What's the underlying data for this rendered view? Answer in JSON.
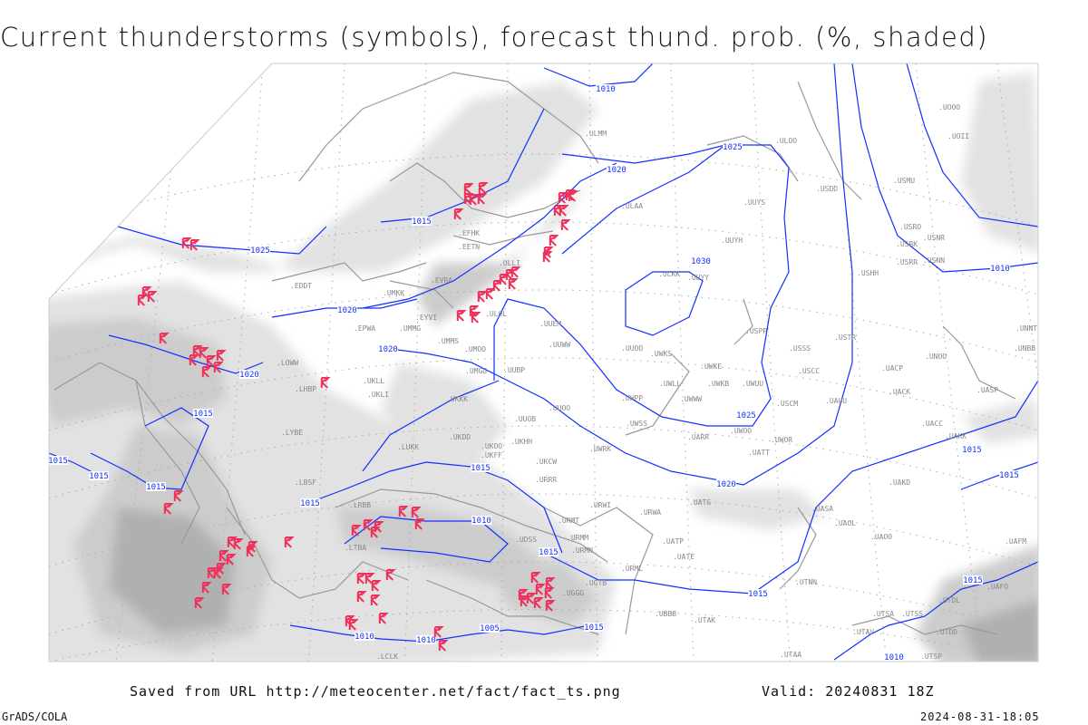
{
  "title": "Current thunderstorms (symbols), forecast thund. prob. (%, shaded)",
  "footer": {
    "source": "Saved from URL http://meteocenter.net/fact/fact_ts.png",
    "valid": "Valid: 20240831 18Z",
    "software": "GrADS/COLA",
    "timestamp": "2024-08-31-18:05"
  },
  "colors": {
    "isobar": "#1030ff",
    "thunderstorm_symbol": "#f0305a",
    "coastline": "#999999",
    "shading_light": "#e2e2e2",
    "shading_mid": "#cccccc",
    "shading_dark": "#b0b0b0"
  },
  "legend_symbol": "thunderstorm-symbol",
  "isobar_labels": [
    "1010",
    "1025",
    "1020",
    "1015",
    "1025",
    "1030",
    "1020",
    "1020",
    "1020",
    "1025",
    "1015",
    "1015",
    "1015",
    "1015",
    "1015",
    "1015",
    "1015",
    "1020",
    "1010",
    "1015",
    "1015",
    "1015",
    "1015",
    "1005",
    "1010",
    "1010",
    "1010",
    "1010",
    "1015"
  ],
  "stations": [
    "ULMM",
    "ULOO",
    "ULAA",
    "UUYS",
    "USDD",
    "USMU",
    "UOOO",
    "UOII",
    "USRO",
    "USRK",
    "USNR",
    "USRR",
    "USNN",
    "UUYH",
    "ULKK",
    "UUYY",
    "USHH",
    "EFHK",
    "EETN",
    "ULLI",
    "ULOL",
    "UMKK",
    "EVRA",
    "EYVI",
    "UMMG",
    "EDDT",
    "EPWA",
    "UMMS",
    "UMOO",
    "UUEM",
    "UUWW",
    "UUOO",
    "UWKS",
    "UWPP",
    "USPP",
    "USSS",
    "USTR",
    "USCC",
    "UWKE",
    "UWKB",
    "UWUU",
    "UWLL",
    "UWWW",
    "USCM",
    "UAUU",
    "UACP",
    "UNOO",
    "UACK",
    "UASP",
    "UNNT",
    "UNBB",
    "LOWW",
    "UKLL",
    "UKLI",
    "LHBP",
    "UMGG",
    "UUBP",
    "UKKK",
    "UUOB",
    "UUOO",
    "UWSS",
    "UARR",
    "UWOO",
    "UATT",
    "UWOR",
    "UACC",
    "UAKK",
    "UKHH",
    "UKDD",
    "UKOO",
    "UKFF",
    "UKCW",
    "UWRK",
    "LRBB",
    "LYBE",
    "LBSF",
    "LUKK",
    "URRR",
    "UAKD",
    "UATG",
    "URWI",
    "URWA",
    "URMT",
    "UASA",
    "UAOL",
    "UAOO",
    "LTBA",
    "UDSS",
    "URMM",
    "URMN",
    "UATE",
    "UATP",
    "URML",
    "UGTB",
    "UGGG",
    "UBBB",
    "UTAK",
    "UTNN",
    "LCLK",
    "UTSA",
    "UTAA",
    "UTSS",
    "UTAV",
    "UTDL",
    "UTDD",
    "UTSP",
    "UAFO",
    "UAFM"
  ]
}
